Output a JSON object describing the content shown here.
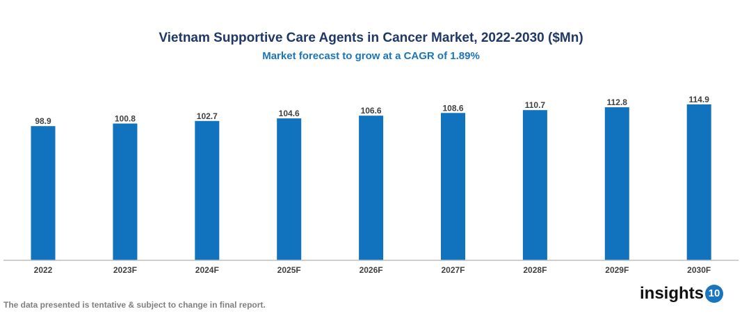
{
  "chart_data": {
    "type": "bar",
    "title": "Vietnam Supportive Care Agents in Cancer Market, 2022-2030 ($Mn)",
    "subtitle": "Market forecast to grow at a CAGR of 1.89%",
    "categories": [
      "2022",
      "2023F",
      "2024F",
      "2025F",
      "2026F",
      "2027F",
      "2028F",
      "2029F",
      "2030F"
    ],
    "values": [
      98.9,
      100.8,
      102.7,
      104.6,
      106.6,
      108.6,
      110.7,
      112.8,
      114.9
    ],
    "xlabel": "",
    "ylabel": "",
    "ylim": [
      0,
      115
    ],
    "grid": false,
    "bar_color": "#1173bd"
  },
  "footnote": "The data presented is tentative & subject to change in final report.",
  "logo": {
    "text": "insights",
    "badge": "10"
  }
}
